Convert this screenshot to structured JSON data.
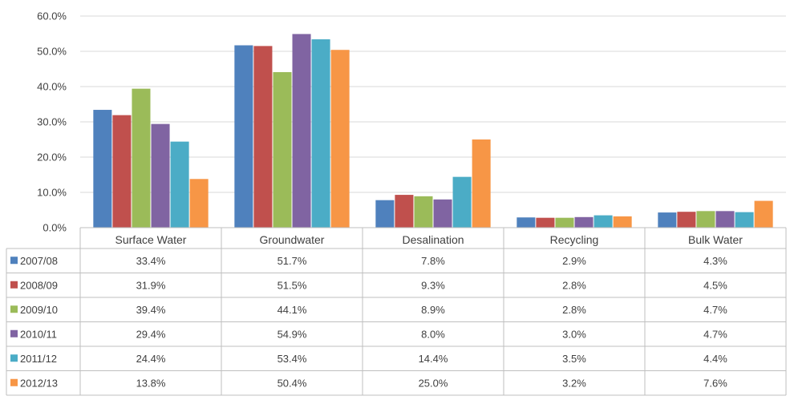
{
  "chart_data": {
    "type": "bar",
    "categories": [
      "Surface Water",
      "Groundwater",
      "Desalination",
      "Recycling",
      "Bulk Water"
    ],
    "ylim": [
      0,
      60
    ],
    "y_ticks": [
      "0.0%",
      "10.0%",
      "20.0%",
      "30.0%",
      "40.0%",
      "50.0%",
      "60.0%"
    ],
    "grid": true,
    "legend_placement": "data table (left column)",
    "series": [
      {
        "name": "2007/08",
        "color": "#4F81BD",
        "values": [
          33.4,
          51.7,
          7.8,
          2.9,
          4.3
        ],
        "labels": [
          "33.4%",
          "51.7%",
          "7.8%",
          "2.9%",
          "4.3%"
        ]
      },
      {
        "name": "2008/09",
        "color": "#C0504D",
        "values": [
          31.9,
          51.5,
          9.3,
          2.8,
          4.5
        ],
        "labels": [
          "31.9%",
          "51.5%",
          "9.3%",
          "2.8%",
          "4.5%"
        ]
      },
      {
        "name": "2009/10",
        "color": "#9BBB59",
        "values": [
          39.4,
          44.1,
          8.9,
          2.8,
          4.7
        ],
        "labels": [
          "39.4%",
          "44.1%",
          "8.9%",
          "2.8%",
          "4.7%"
        ]
      },
      {
        "name": "2010/11",
        "color": "#8064A2",
        "values": [
          29.4,
          54.9,
          8.0,
          3.0,
          4.7
        ],
        "labels": [
          "29.4%",
          "54.9%",
          "8.0%",
          "3.0%",
          "4.7%"
        ]
      },
      {
        "name": "2011/12",
        "color": "#4BACC6",
        "values": [
          24.4,
          53.4,
          14.4,
          3.5,
          4.4
        ],
        "labels": [
          "24.4%",
          "53.4%",
          "14.4%",
          "3.5%",
          "4.4%"
        ]
      },
      {
        "name": "2012/13",
        "color": "#F79646",
        "values": [
          13.8,
          50.4,
          25.0,
          3.2,
          7.6
        ],
        "labels": [
          "13.8%",
          "50.4%",
          "25.0%",
          "3.2%",
          "7.6%"
        ]
      }
    ]
  }
}
